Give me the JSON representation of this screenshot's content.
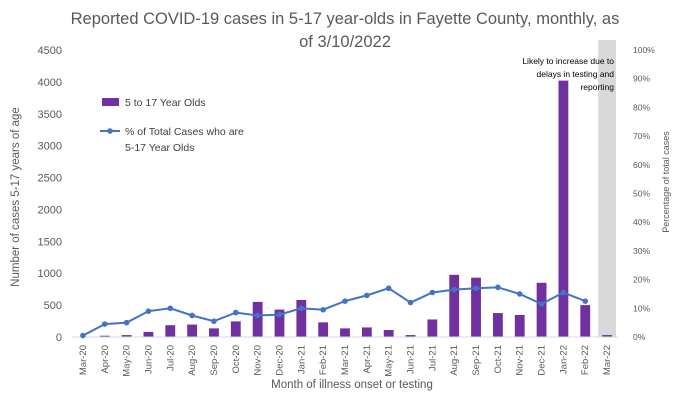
{
  "chart_data": {
    "type": "bar",
    "title_lines": [
      "Reported COVID-19 cases in 5-17 year-olds in Fayette County, monthly, as",
      "of 3/10/2022"
    ],
    "xlabel": "Month of illness onset or testing",
    "ylabel": "Number of cases 5-17 years of age",
    "y2label": "Percentage of total cases",
    "ylim": [
      0,
      4500
    ],
    "yticks": [
      "0",
      "500",
      "1000",
      "1500",
      "2000",
      "2500",
      "3000",
      "3500",
      "4000",
      "4500"
    ],
    "y2lim": [
      0,
      100
    ],
    "y2ticks": [
      "0%",
      "10%",
      "20%",
      "30%",
      "40%",
      "50%",
      "60%",
      "70%",
      "80%",
      "90%",
      "100%"
    ],
    "categories": [
      "Mar-20",
      "Apr-20",
      "May-20",
      "Jun-20",
      "Jul-20",
      "Aug-20",
      "Sep-20",
      "Oct-20",
      "Nov-20",
      "Dec-20",
      "Jan-21",
      "Feb-21",
      "Mar-21",
      "Apr-21",
      "May-21",
      "Jun-21",
      "Jul-21",
      "Aug-21",
      "Sep-21",
      "Oct-21",
      "Nov-21",
      "Dec-21",
      "Jan-22",
      "Feb-22",
      "Mar-22"
    ],
    "series": [
      {
        "name": "5 to 17 Year Olds",
        "kind": "bar",
        "axis": "left",
        "color": "#7030a0",
        "values": [
          5,
          20,
          30,
          80,
          185,
          195,
          135,
          245,
          550,
          430,
          580,
          230,
          135,
          150,
          110,
          30,
          275,
          975,
          930,
          375,
          345,
          850,
          4020,
          500,
          30
        ]
      },
      {
        "name": "% of Total Cases who are 5-17 Year Olds",
        "legend_lines": [
          "% of Total Cases who are",
          "5-17 Year Olds"
        ],
        "kind": "line",
        "axis": "right",
        "color": "#4472c4",
        "values": [
          0.5,
          4.5,
          5,
          9,
          10,
          7.5,
          5.5,
          8.5,
          7.5,
          7.8,
          10,
          9.5,
          12.5,
          14.5,
          17,
          12,
          15.5,
          16.5,
          17,
          17.3,
          15,
          11.5,
          15.5,
          12.5,
          null
        ]
      }
    ],
    "shaded_category": "Mar-22",
    "shade_color": "#d9d9d9",
    "annotation_lines": [
      "Likely to increase due to",
      "delays in testing and",
      "reporting"
    ],
    "legend_position": "upper-left"
  }
}
